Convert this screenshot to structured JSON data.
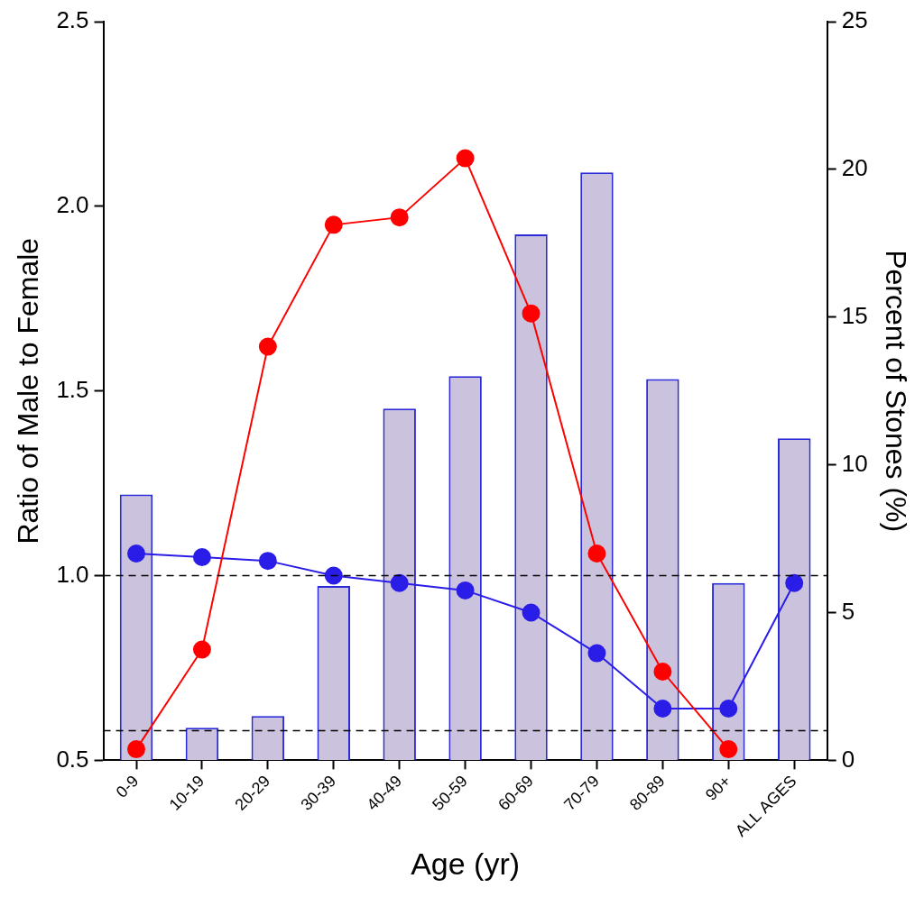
{
  "chart_data": {
    "type": "bar",
    "x_label": "Age (yr)",
    "y_label": "Ratio of Male to Female",
    "y2_label": "Percent of Stones (%)",
    "categories": [
      "0-9",
      "10-19",
      "20-29",
      "30-39",
      "40-49",
      "50-59",
      "60-69",
      "70-79",
      "80-89",
      "90+",
      "ALL AGES"
    ],
    "series": [
      {
        "type": "bar",
        "axis": "y2",
        "color": "#cbc2dd",
        "values": [
          9.0,
          1.1,
          1.5,
          5.9,
          11.9,
          13.0,
          17.8,
          19.9,
          12.9,
          6.0,
          10.9
        ]
      },
      {
        "type": "line",
        "axis": "y",
        "color": "#ff0000",
        "marker": "circle",
        "line_style": "solid",
        "values": [
          0.53,
          0.8,
          1.62,
          1.95,
          1.97,
          2.13,
          1.71,
          1.06,
          0.74,
          0.53,
          null
        ]
      },
      {
        "type": "line",
        "axis": "y",
        "color": "#2b1de8",
        "marker": "circle",
        "line_style": "solid",
        "values": [
          1.06,
          1.05,
          1.04,
          1.0,
          0.98,
          0.96,
          0.9,
          0.79,
          0.64,
          0.64,
          0.98
        ]
      }
    ],
    "reference_lines": [
      {
        "axis": "y",
        "value": 1.0,
        "line_style": "dashed"
      },
      {
        "axis": "y2",
        "value": 1,
        "line_style": "dashed"
      }
    ],
    "ylim": [
      0.5,
      2.5
    ],
    "yticks": [
      0.5,
      {
        "value": 1,
        "label": "1.0"
      },
      1.5,
      {
        "value": 2,
        "label": "2.0"
      },
      2.5
    ],
    "y2lim": [
      0,
      25
    ],
    "y2ticks": [
      0,
      5,
      10,
      15,
      20,
      25
    ],
    "grid": false
  }
}
